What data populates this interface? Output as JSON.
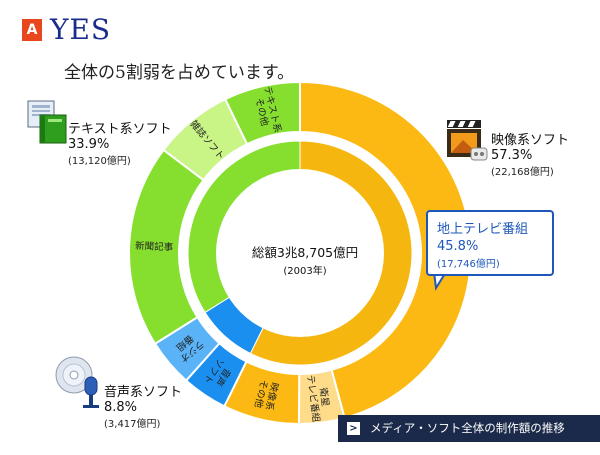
{
  "header": {
    "badge": "A",
    "answer": "YES",
    "subtitle": "全体の5割弱を占めています。"
  },
  "labels": {
    "text": {
      "name": "テキスト系ソフト",
      "pct": "33.9%",
      "amount": "(13,120億円)"
    },
    "video": {
      "name": "映像系ソフト",
      "pct": "57.3%",
      "amount": "(22,168億円)"
    },
    "audio": {
      "name": "音声系ソフト",
      "pct": "8.8%",
      "amount": "(3,417億円)"
    }
  },
  "callout": {
    "name": "地上テレビ番組",
    "pct": "45.8%",
    "amount": "(17,746億円)"
  },
  "center": {
    "total": "総額3兆8,705億円",
    "year": "(2003年)"
  },
  "footer": {
    "link": "メディア・ソフト全体の制作額の推移"
  },
  "colors": {
    "video_light": "#fcb913",
    "video_inner": "#f5b70f",
    "video_pale": "#fedc8a",
    "text_light": "#86df2f",
    "text_pale": "#c9f486",
    "audio_dark": "#1b8ff0",
    "audio_light": "#5ab2f7"
  },
  "icons": {
    "text": "book-document-icon",
    "video": "film-clapper-icon",
    "audio": "cd-microphone-icon"
  },
  "chart_data": {
    "type": "pie",
    "inner_ring": [
      {
        "category": "映像系ソフト",
        "value": 57.3
      },
      {
        "category": "音声系ソフト",
        "value": 8.8
      },
      {
        "category": "テキスト系ソフト",
        "value": 33.9
      }
    ],
    "outer_ring": [
      {
        "category": "映像系ソフト",
        "label": "地上テレビ番組",
        "value": 45.8
      },
      {
        "category": "映像系ソフト",
        "label": "衛星テレビ番組",
        "value": 4.3
      },
      {
        "category": "映像系ソフト",
        "label": "映像系その他",
        "value": 7.2
      },
      {
        "category": "音声系ソフト",
        "label": "音声ソフト",
        "value": 4.3
      },
      {
        "category": "音声系ソフト",
        "label": "ラジオ番組",
        "value": 4.5
      },
      {
        "category": "テキスト系ソフト",
        "label": "新聞記事",
        "value": 19.2
      },
      {
        "category": "テキスト系ソフト",
        "label": "雑誌ソフト",
        "value": 7.5
      },
      {
        "category": "テキスト系ソフト",
        "label": "テキスト系その他",
        "value": 7.2
      }
    ]
  }
}
